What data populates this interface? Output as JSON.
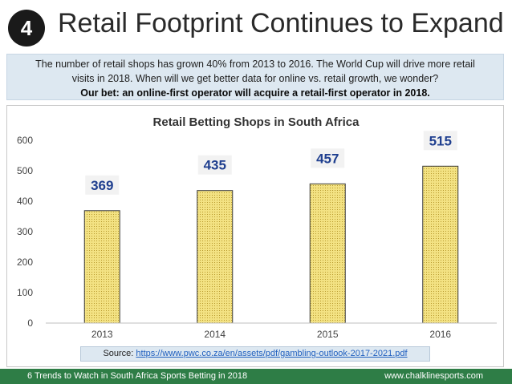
{
  "header": {
    "badge": "4",
    "title": "Retail Footprint Continues to Expand"
  },
  "intro": {
    "line1": "The number of retail shops has grown 40% from 2013 to 2016. The World Cup will drive more retail",
    "line2": "visits in 2018. When will we get better data for online vs. retail growth, we wonder?",
    "line3": "Our bet: an online-first operator will acquire a retail-first operator in 2018."
  },
  "chart_data": {
    "type": "bar",
    "title": "Retail Betting Shops in South Africa",
    "categories": [
      "2013",
      "2014",
      "2015",
      "2016"
    ],
    "values": [
      369,
      435,
      457,
      515
    ],
    "data_labels": [
      "369",
      "435",
      "457",
      "515"
    ],
    "ylim": [
      0,
      600
    ],
    "yticks": [
      0,
      100,
      200,
      300,
      400,
      500,
      600
    ],
    "xlabel": "",
    "ylabel": "",
    "grid": false,
    "colors": {
      "bar_fill": "#f3e283",
      "bar_stroke": "#3a3a3a",
      "label": "#1f3f8f"
    }
  },
  "source": {
    "label": "Source: ",
    "url": "https://www.pwc.co.za/en/assets/pdf/gambling-outlook-2017-2021.pdf"
  },
  "footer": {
    "left": "6 Trends to Watch in South Africa Sports Betting in 2018",
    "right": "www.chalklinesports.com"
  },
  "colors": {
    "footer_bg": "#2e7d46",
    "intro_bg": "#dde8f1",
    "badge_bg": "#1a1a1a"
  }
}
